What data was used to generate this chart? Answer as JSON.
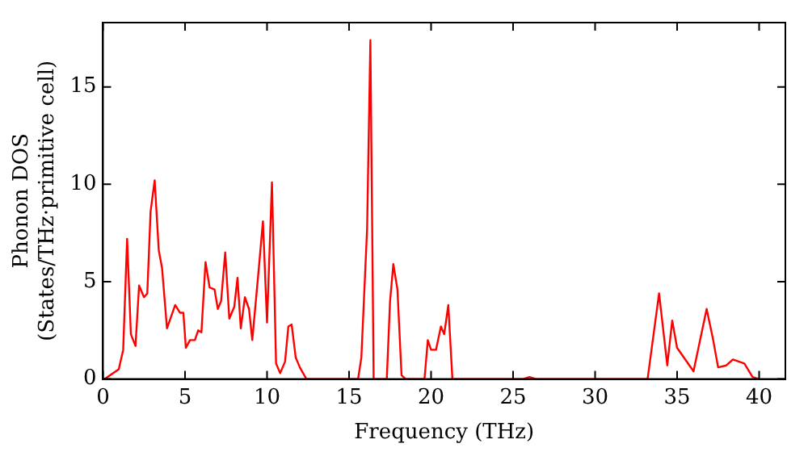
{
  "chart_data": {
    "type": "line",
    "xlabel": "Frequency (THz)",
    "ylabel": "Phonon DOS\n(States/THz·primitive cell)",
    "xlim": [
      0,
      41.6
    ],
    "ylim": [
      0,
      18.3
    ],
    "xticks": [
      0,
      5,
      10,
      15,
      20,
      25,
      30,
      35,
      40
    ],
    "yticks": [
      0,
      5,
      10,
      15
    ],
    "grid": false,
    "legend": false,
    "marker": "none",
    "line_style": "solid",
    "series": [
      {
        "color": "#ff0000",
        "x": [
          0,
          0.1,
          0.96,
          1.23,
          1.47,
          1.7,
          1.98,
          2.2,
          2.5,
          2.7,
          2.9,
          3.15,
          3.4,
          3.6,
          3.9,
          4.4,
          4.7,
          4.9,
          5.05,
          5.3,
          5.6,
          5.8,
          6.0,
          6.25,
          6.5,
          6.8,
          7.0,
          7.2,
          7.45,
          7.7,
          8.0,
          8.2,
          8.4,
          8.65,
          8.9,
          9.1,
          9.5,
          9.75,
          10.0,
          10.3,
          10.55,
          10.8,
          11.1,
          11.3,
          11.5,
          11.75,
          12.0,
          12.4,
          15.55,
          15.75,
          16.1,
          16.3,
          16.5,
          17.3,
          17.5,
          17.7,
          17.95,
          18.2,
          18.45,
          19.6,
          19.8,
          20.0,
          20.3,
          20.6,
          20.8,
          21.05,
          21.3,
          25.6,
          26.0,
          26.4,
          33.2,
          33.9,
          34.4,
          34.7,
          35.0,
          36.0,
          36.8,
          37.2,
          37.5,
          38.0,
          38.4,
          39.1,
          39.6,
          40.0
        ],
        "values": [
          0,
          0,
          0.5,
          1.5,
          7.2,
          2.3,
          1.7,
          4.8,
          4.2,
          4.4,
          8.6,
          10.2,
          6.6,
          5.7,
          2.6,
          3.8,
          3.4,
          3.4,
          1.6,
          2.0,
          2.0,
          2.5,
          2.4,
          6.0,
          4.7,
          4.6,
          3.6,
          4.0,
          6.5,
          3.1,
          3.7,
          5.2,
          2.6,
          4.2,
          3.6,
          2.0,
          5.7,
          8.1,
          2.9,
          10.1,
          0.8,
          0.3,
          0.9,
          2.7,
          2.8,
          1.1,
          0.6,
          0,
          0,
          1.1,
          7.7,
          17.4,
          0,
          0,
          4.0,
          5.9,
          4.6,
          0.2,
          0,
          0,
          2.0,
          1.5,
          1.5,
          2.7,
          2.3,
          3.8,
          0,
          0,
          0.1,
          0,
          0,
          4.4,
          0.7,
          3.0,
          1.6,
          0.4,
          3.6,
          2.0,
          0.6,
          0.7,
          1.0,
          0.8,
          0.1,
          0
        ]
      }
    ]
  }
}
